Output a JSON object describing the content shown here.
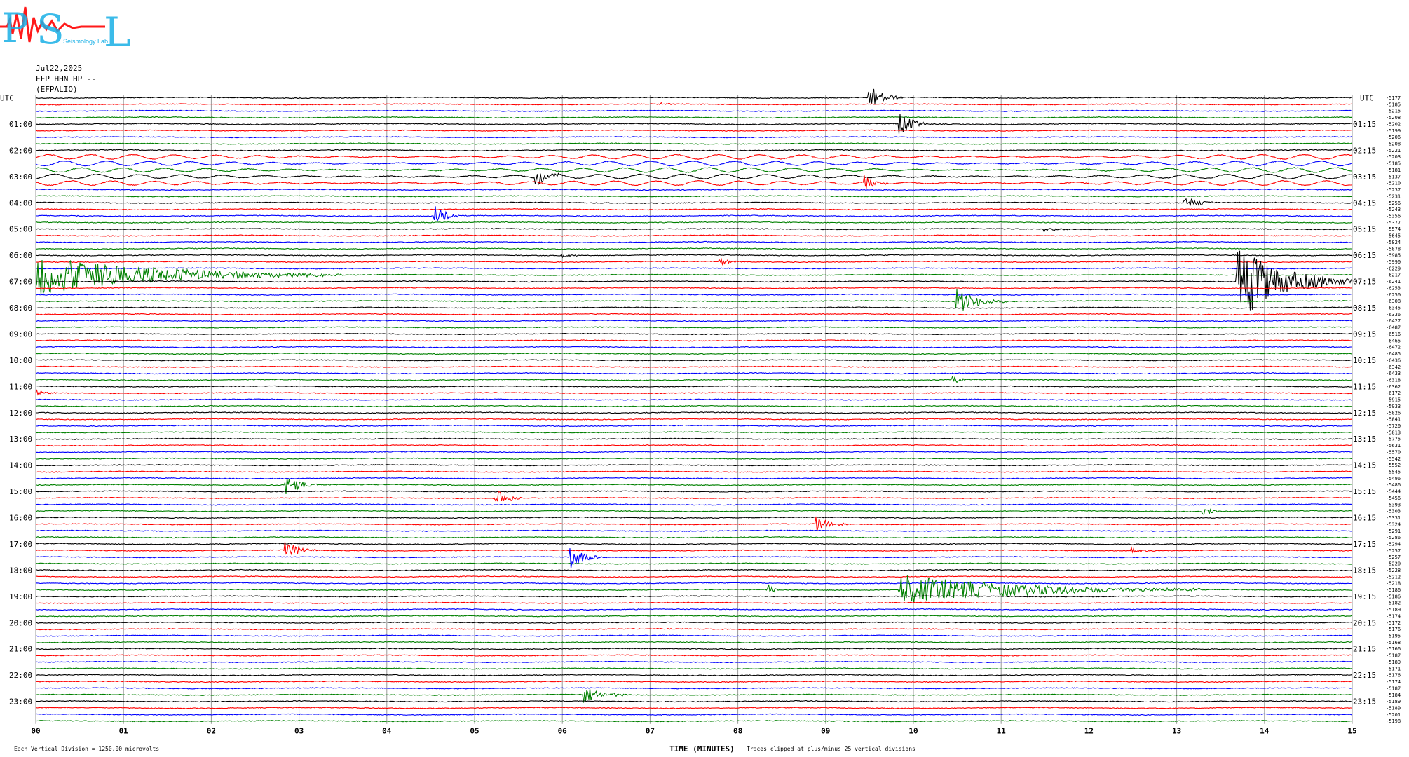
{
  "header": {
    "logo_text": "PSL",
    "logo_subtitle": "Seismology Lab",
    "date": "Jul22,2025",
    "channel": "EFP HHN HP --",
    "station": "(EFPALIO)"
  },
  "chart_data": {
    "type": "seismogram (helicorder)",
    "left_axis_title": "UTC",
    "right_axis_title": "UTC",
    "xlabel": "TIME (MINUTES)",
    "xlim": [
      0,
      15
    ],
    "x_ticks": [
      "00",
      "01",
      "02",
      "03",
      "04",
      "05",
      "06",
      "07",
      "08",
      "09",
      "10",
      "11",
      "12",
      "13",
      "14",
      "15"
    ],
    "line_minutes": 15,
    "trace_colors": [
      "#000000",
      "#ff0000",
      "#0000ff",
      "#008000"
    ],
    "left_labels": [
      "UTC",
      "01:00",
      "02:00",
      "03:00",
      "04:00",
      "05:00",
      "06:00",
      "07:00",
      "08:00",
      "09:00",
      "10:00",
      "11:00",
      "12:00",
      "13:00",
      "14:00",
      "15:00",
      "16:00",
      "17:00",
      "18:00",
      "19:00",
      "20:00",
      "21:00",
      "22:00",
      "23:00"
    ],
    "right_labels": [
      "UTC",
      "01:15",
      "02:15",
      "03:15",
      "04:15",
      "05:15",
      "06:15",
      "07:15",
      "08:15",
      "09:15",
      "10:15",
      "11:15",
      "12:15",
      "13:15",
      "14:15",
      "15:15",
      "16:15",
      "17:15",
      "18:15",
      "19:15",
      "20:15",
      "21:15",
      "22:15",
      "23:15"
    ],
    "trace_offsets": [
      "-5177",
      "-5185",
      "-5215",
      "-5208",
      "-5202",
      "-5199",
      "-5206",
      "-5208",
      "-5221",
      "-5203",
      "-5185",
      "-5181",
      "-5137",
      "-5210",
      "-5237",
      "-5231",
      "-5256",
      "-5243",
      "-5356",
      "-5377",
      "-5574",
      "-5645",
      "-5824",
      "-5878",
      "-5985",
      "-5990",
      "-6229",
      "-6217",
      "-6241",
      "-6253",
      "-6250",
      "-6308",
      "-6345",
      "-6336",
      "-6427",
      "-6487",
      "-6516",
      "-6465",
      "-6472",
      "-6485",
      "-6436",
      "-6342",
      "-6433",
      "-6318",
      "-6362",
      "-6172",
      "-5915",
      "-5933",
      "-5826",
      "-5841",
      "-5720",
      "-5813",
      "-5775",
      "-5631",
      "-5570",
      "-5542",
      "-5552",
      "-5545",
      "-5496",
      "-5486",
      "-5444",
      "-5456",
      "-5393",
      "-5303",
      "-5331",
      "-5324",
      "-5291",
      "-5286",
      "-5294",
      "-5257",
      "-5257",
      "-5220",
      "-5228",
      "-5212",
      "-5218",
      "-5186",
      "-5186",
      "-5182",
      "-5189",
      "-5174",
      "-5172",
      "-5176",
      "-5195",
      "-5168",
      "-5166",
      "-5187",
      "-5189",
      "-5171",
      "-5176",
      "-5174",
      "-5187",
      "-5184",
      "-5189",
      "-5189",
      "-5201",
      "-5198"
    ],
    "events": [
      {
        "trace": 0,
        "minute": 9.5,
        "amplitude": 1.8,
        "duration_min": 0.4,
        "color_index": 0
      },
      {
        "trace": 1,
        "minute": 7.1,
        "amplitude": 0.3,
        "duration_min": 0.2,
        "color_index": 2
      },
      {
        "trace": 4,
        "minute": 9.85,
        "amplitude": 1.6,
        "duration_min": 0.35,
        "color_index": 1
      },
      {
        "trace": 12,
        "minute": 5.7,
        "amplitude": 1.4,
        "duration_min": 0.3,
        "color_index": 0
      },
      {
        "trace": 13,
        "minute": 9.45,
        "amplitude": 1.1,
        "duration_min": 0.3,
        "color_index": 0
      },
      {
        "trace": 16,
        "minute": 13.1,
        "amplitude": 1.1,
        "duration_min": 0.35,
        "color_index": 0
      },
      {
        "trace": 18,
        "minute": 4.55,
        "amplitude": 1.5,
        "duration_min": 0.3,
        "color_index": 2
      },
      {
        "trace": 20,
        "minute": 11.5,
        "amplitude": 0.4,
        "duration_min": 0.3,
        "color_index": 0
      },
      {
        "trace": 24,
        "minute": 6.0,
        "amplitude": 0.3,
        "duration_min": 0.3,
        "color_index": 0
      },
      {
        "trace": 25,
        "minute": 7.8,
        "amplitude": 0.6,
        "duration_min": 0.2,
        "color_index": 1
      },
      {
        "trace": 31,
        "minute": 10.5,
        "amplitude": 1.9,
        "duration_min": 0.6,
        "color_index": 3
      },
      {
        "trace": 43,
        "minute": 10.45,
        "amplitude": 0.8,
        "duration_min": 0.2,
        "color_index": 2
      },
      {
        "trace": 45,
        "minute": 0.0,
        "amplitude": 0.4,
        "duration_min": 0.3,
        "color_index": 3
      },
      {
        "trace": 59,
        "minute": 2.85,
        "amplitude": 1.6,
        "duration_min": 0.35,
        "color_index": 0
      },
      {
        "trace": 61,
        "minute": 5.25,
        "amplitude": 1.7,
        "duration_min": 0.3,
        "color_index": 2
      },
      {
        "trace": 63,
        "minute": 13.3,
        "amplitude": 0.9,
        "duration_min": 0.2,
        "color_index": 3
      },
      {
        "trace": 65,
        "minute": 8.9,
        "amplitude": 1.5,
        "duration_min": 0.35,
        "color_index": 1
      },
      {
        "trace": 69,
        "minute": 2.85,
        "amplitude": 1.4,
        "duration_min": 0.35,
        "color_index": 1
      },
      {
        "trace": 70,
        "minute": 6.1,
        "amplitude": 1.8,
        "duration_min": 0.35,
        "color_index": 2
      },
      {
        "trace": 69,
        "minute": 12.5,
        "amplitude": 0.5,
        "duration_min": 0.2,
        "color_index": 1
      },
      {
        "trace": 75,
        "minute": 8.35,
        "amplitude": 1.0,
        "duration_min": 0.1,
        "color_index": 0
      },
      {
        "trace": 75,
        "minute": 9.85,
        "amplitude": 2.4,
        "duration_min": 3.5,
        "color_index": 3
      },
      {
        "trace": 91,
        "minute": 6.25,
        "amplitude": 1.4,
        "duration_min": 0.5,
        "color_index": 3
      },
      {
        "trace": 27,
        "minute": 0.0,
        "amplitude": 3.2,
        "duration_min": 3.5,
        "color_index": 3
      },
      {
        "trace": 28,
        "minute": 13.7,
        "amplitude": 6.0,
        "duration_min": 1.3,
        "color_index": 2
      }
    ],
    "microseism_traces": [
      9,
      10,
      11,
      12,
      13
    ],
    "annotations": {
      "scale_note": "Each Vertical Division = 1250.00 microvolts",
      "clip_note": "Traces clipped at plus/minus 25 vertical divisions"
    }
  }
}
